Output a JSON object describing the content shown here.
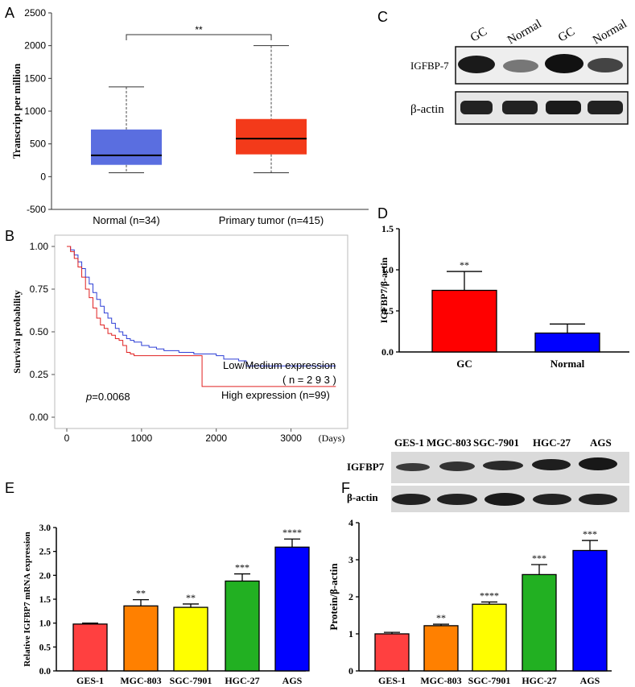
{
  "panel_letters": {
    "a": "A",
    "b": "B",
    "c": "C",
    "d": "D",
    "e": "E",
    "f": "F"
  },
  "colors": {
    "blue": "#5a6ee0",
    "red": "#f33a1a",
    "bar_red": "#ff0000",
    "bar_blue": "#0000ff",
    "orange": "#ff8000",
    "yellow": "#ffff00",
    "green": "#22b022",
    "e_red": "#ff4040"
  },
  "blot_c": {
    "lanes": [
      "GC",
      "Normal",
      "GC",
      "Normal"
    ],
    "rows": [
      "IGFBP-7",
      "β-actin"
    ]
  },
  "blot_f": {
    "lanes": [
      "GES-1",
      "MGC-803",
      "SGC-7901",
      "HGC-27",
      "AGS"
    ],
    "rows": [
      "IGFBP7",
      "β-actin"
    ]
  },
  "chart_data": [
    {
      "panel": "A",
      "type": "box",
      "categories": [
        "Normal (n=34)",
        "Primary tumor (n=415)"
      ],
      "boxes": [
        {
          "min": 60,
          "q1": 180,
          "median": 325,
          "q3": 720,
          "max": 1370,
          "color": "#5a6ee0"
        },
        {
          "min": 60,
          "q1": 340,
          "median": 580,
          "q3": 880,
          "max": 2000,
          "color": "#f33a1a"
        }
      ],
      "ylabel": "Transcript per million",
      "ylim": [
        -500,
        2500
      ],
      "yticks": [
        "-500",
        "0",
        "500",
        "1000",
        "1500",
        "2000",
        "2500"
      ],
      "annotation": "**"
    },
    {
      "panel": "B",
      "type": "line",
      "xlabel": "(Days)",
      "ylabel": "Survival probability",
      "xlim": [
        0,
        3500
      ],
      "ylim": [
        0,
        1
      ],
      "xticks": [
        "0",
        "1000",
        "2000",
        "3000"
      ],
      "yticks": [
        "0.00",
        "0.25",
        "0.50",
        "0.75",
        "1.00"
      ],
      "series": [
        {
          "name": "Low/Medium expression",
          "n_label": "( n = 2 9 3 )",
          "color": "#2d3fd6",
          "x": [
            0,
            50,
            100,
            150,
            200,
            250,
            300,
            350,
            400,
            450,
            500,
            550,
            600,
            650,
            700,
            750,
            800,
            850,
            900,
            1000,
            1100,
            1200,
            1300,
            1400,
            1500,
            1600,
            1700,
            1800,
            1900,
            2000,
            2100,
            2200,
            2300,
            2400,
            3600
          ],
          "y": [
            1.0,
            0.98,
            0.95,
            0.91,
            0.87,
            0.82,
            0.78,
            0.73,
            0.69,
            0.65,
            0.61,
            0.58,
            0.55,
            0.52,
            0.5,
            0.48,
            0.46,
            0.45,
            0.44,
            0.42,
            0.41,
            0.4,
            0.39,
            0.39,
            0.38,
            0.38,
            0.37,
            0.37,
            0.37,
            0.36,
            0.34,
            0.34,
            0.33,
            0.3,
            0.3
          ]
        },
        {
          "name": "High expression (n=99)",
          "color": "#e02020",
          "x": [
            0,
            50,
            100,
            150,
            200,
            250,
            300,
            350,
            400,
            450,
            500,
            550,
            600,
            650,
            700,
            750,
            800,
            850,
            900,
            1000,
            1200,
            1400,
            1600,
            1800,
            1810,
            3600
          ],
          "y": [
            1.0,
            0.97,
            0.93,
            0.88,
            0.82,
            0.75,
            0.7,
            0.64,
            0.58,
            0.54,
            0.52,
            0.49,
            0.48,
            0.46,
            0.45,
            0.42,
            0.38,
            0.37,
            0.36,
            0.36,
            0.36,
            0.36,
            0.36,
            0.36,
            0.18,
            0.18
          ]
        }
      ],
      "annotation": "p=0.0068",
      "annotation_italic": "p",
      "annotation_rest": "=0.0068"
    },
    {
      "panel": "D",
      "type": "bar",
      "categories": [
        "GC",
        "Normal"
      ],
      "values": [
        0.75,
        0.23
      ],
      "errors": [
        0.23,
        0.11
      ],
      "colors": [
        "#ff0000",
        "#0000ff"
      ],
      "ylabel": "IGFBP7/β-actin",
      "ylim": [
        0,
        1.5
      ],
      "yticks": [
        "0.0",
        "0.5",
        "1.0",
        "1.5"
      ],
      "annotations": [
        "**",
        ""
      ]
    },
    {
      "panel": "E",
      "type": "bar",
      "categories": [
        "GES-1",
        "MGC-803",
        "SGC-7901",
        "HGC-27",
        "AGS"
      ],
      "values": [
        0.98,
        1.36,
        1.33,
        1.88,
        2.59
      ],
      "errors": [
        0.02,
        0.13,
        0.07,
        0.15,
        0.17
      ],
      "colors": [
        "#ff4040",
        "#ff8000",
        "#ffff00",
        "#22b022",
        "#0000ff"
      ],
      "ylabel": "Relative IGFBP7 mRNA expression",
      "ylim": [
        0,
        3.0
      ],
      "yticks": [
        "0.0",
        "0.5",
        "1.0",
        "1.5",
        "2.0",
        "2.5",
        "3.0"
      ],
      "annotations": [
        "",
        "**",
        "**",
        "***",
        "****"
      ]
    },
    {
      "panel": "F",
      "type": "bar",
      "categories": [
        "GES-1",
        "MGC-803",
        "SGC-7901",
        "HGC-27",
        "AGS"
      ],
      "values": [
        1.0,
        1.22,
        1.8,
        2.6,
        3.25
      ],
      "errors": [
        0.04,
        0.04,
        0.06,
        0.27,
        0.27
      ],
      "colors": [
        "#ff4040",
        "#ff8000",
        "#ffff00",
        "#22b022",
        "#0000ff"
      ],
      "ylabel": "Protein/β-actin",
      "ylim": [
        0,
        4
      ],
      "yticks": [
        "0",
        "1",
        "2",
        "3",
        "4"
      ],
      "annotations": [
        "",
        "**",
        "****",
        "***",
        "***"
      ]
    }
  ]
}
